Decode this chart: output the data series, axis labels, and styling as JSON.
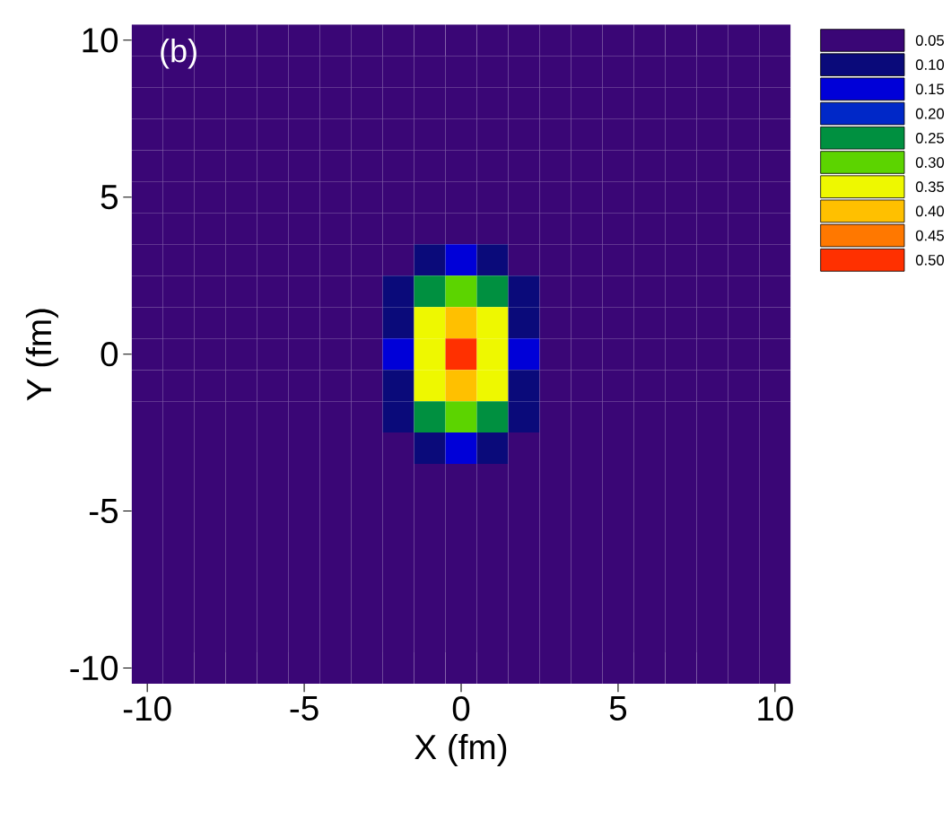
{
  "chart_data": {
    "type": "heatmap",
    "xlabel": "X (fm)",
    "ylabel": "Y (fm)",
    "annotations": [
      "(b)"
    ],
    "categories": [
      "-10",
      null,
      null,
      null,
      null,
      "-5",
      null,
      null,
      null,
      null,
      "0",
      null,
      null,
      null,
      null,
      "5",
      null,
      null,
      null,
      null,
      "10"
    ],
    "y_categories": [
      "10",
      null,
      null,
      null,
      null,
      "5",
      null,
      null,
      null,
      null,
      "0",
      null,
      null,
      null,
      null,
      "-5",
      null,
      null,
      null,
      null,
      "-10"
    ],
    "cells": [
      [
        0.05,
        0.05,
        0.05,
        0.05,
        0.05,
        0.05,
        0.05,
        0.05,
        0.05,
        0.05,
        0.05,
        0.05,
        0.05,
        0.05,
        0.05,
        0.05,
        0.05,
        0.05,
        0.05,
        0.05,
        0.05
      ],
      [
        0.05,
        0.05,
        0.05,
        0.05,
        0.05,
        0.05,
        0.05,
        0.05,
        0.05,
        0.05,
        0.05,
        0.05,
        0.05,
        0.05,
        0.05,
        0.05,
        0.05,
        0.05,
        0.05,
        0.05,
        0.05
      ],
      [
        0.05,
        0.05,
        0.05,
        0.05,
        0.05,
        0.05,
        0.05,
        0.05,
        0.05,
        0.05,
        0.05,
        0.05,
        0.05,
        0.05,
        0.05,
        0.05,
        0.05,
        0.05,
        0.05,
        0.05,
        0.05
      ],
      [
        0.05,
        0.05,
        0.05,
        0.05,
        0.05,
        0.05,
        0.05,
        0.05,
        0.05,
        0.05,
        0.05,
        0.05,
        0.05,
        0.05,
        0.05,
        0.05,
        0.05,
        0.05,
        0.05,
        0.05,
        0.05
      ],
      [
        0.05,
        0.05,
        0.05,
        0.05,
        0.05,
        0.05,
        0.05,
        0.05,
        0.05,
        0.05,
        0.05,
        0.05,
        0.05,
        0.05,
        0.05,
        0.05,
        0.05,
        0.05,
        0.05,
        0.05,
        0.05
      ],
      [
        0.05,
        0.05,
        0.05,
        0.05,
        0.05,
        0.05,
        0.05,
        0.05,
        0.05,
        0.05,
        0.05,
        0.05,
        0.05,
        0.05,
        0.05,
        0.05,
        0.05,
        0.05,
        0.05,
        0.05,
        0.05
      ],
      [
        0.05,
        0.05,
        0.05,
        0.05,
        0.05,
        0.05,
        0.05,
        0.05,
        0.05,
        0.05,
        0.05,
        0.05,
        0.05,
        0.05,
        0.05,
        0.05,
        0.05,
        0.05,
        0.05,
        0.05,
        0.05
      ],
      [
        0.05,
        0.05,
        0.05,
        0.05,
        0.05,
        0.05,
        0.05,
        0.05,
        0.05,
        0.1,
        0.15,
        0.1,
        0.05,
        0.05,
        0.05,
        0.05,
        0.05,
        0.05,
        0.05,
        0.05,
        0.05
      ],
      [
        0.05,
        0.05,
        0.05,
        0.05,
        0.05,
        0.05,
        0.05,
        0.05,
        0.1,
        0.25,
        0.3,
        0.25,
        0.1,
        0.05,
        0.05,
        0.05,
        0.05,
        0.05,
        0.05,
        0.05,
        0.05
      ],
      [
        0.05,
        0.05,
        0.05,
        0.05,
        0.05,
        0.05,
        0.05,
        0.05,
        0.1,
        0.35,
        0.4,
        0.35,
        0.1,
        0.05,
        0.05,
        0.05,
        0.05,
        0.05,
        0.05,
        0.05,
        0.05
      ],
      [
        0.05,
        0.05,
        0.05,
        0.05,
        0.05,
        0.05,
        0.05,
        0.05,
        0.15,
        0.35,
        0.5,
        0.35,
        0.15,
        0.05,
        0.05,
        0.05,
        0.05,
        0.05,
        0.05,
        0.05,
        0.05
      ],
      [
        0.05,
        0.05,
        0.05,
        0.05,
        0.05,
        0.05,
        0.05,
        0.05,
        0.1,
        0.35,
        0.4,
        0.35,
        0.1,
        0.05,
        0.05,
        0.05,
        0.05,
        0.05,
        0.05,
        0.05,
        0.05
      ],
      [
        0.05,
        0.05,
        0.05,
        0.05,
        0.05,
        0.05,
        0.05,
        0.05,
        0.1,
        0.25,
        0.3,
        0.25,
        0.1,
        0.05,
        0.05,
        0.05,
        0.05,
        0.05,
        0.05,
        0.05,
        0.05
      ],
      [
        0.05,
        0.05,
        0.05,
        0.05,
        0.05,
        0.05,
        0.05,
        0.05,
        0.05,
        0.1,
        0.15,
        0.1,
        0.05,
        0.05,
        0.05,
        0.05,
        0.05,
        0.05,
        0.05,
        0.05,
        0.05
      ],
      [
        0.05,
        0.05,
        0.05,
        0.05,
        0.05,
        0.05,
        0.05,
        0.05,
        0.05,
        0.05,
        0.05,
        0.05,
        0.05,
        0.05,
        0.05,
        0.05,
        0.05,
        0.05,
        0.05,
        0.05,
        0.05
      ],
      [
        0.05,
        0.05,
        0.05,
        0.05,
        0.05,
        0.05,
        0.05,
        0.05,
        0.05,
        0.05,
        0.05,
        0.05,
        0.05,
        0.05,
        0.05,
        0.05,
        0.05,
        0.05,
        0.05,
        0.05,
        0.05
      ],
      [
        0.05,
        0.05,
        0.05,
        0.05,
        0.05,
        0.05,
        0.05,
        0.05,
        0.05,
        0.05,
        0.05,
        0.05,
        0.05,
        0.05,
        0.05,
        0.05,
        0.05,
        0.05,
        0.05,
        0.05,
        0.05
      ],
      [
        0.05,
        0.05,
        0.05,
        0.05,
        0.05,
        0.05,
        0.05,
        0.05,
        0.05,
        0.05,
        0.05,
        0.05,
        0.05,
        0.05,
        0.05,
        0.05,
        0.05,
        0.05,
        0.05,
        0.05,
        0.05
      ],
      [
        0.05,
        0.05,
        0.05,
        0.05,
        0.05,
        0.05,
        0.05,
        0.05,
        0.05,
        0.05,
        0.05,
        0.05,
        0.05,
        0.05,
        0.05,
        0.05,
        0.05,
        0.05,
        0.05,
        0.05,
        0.05
      ],
      [
        0.05,
        0.05,
        0.05,
        0.05,
        0.05,
        0.05,
        0.05,
        0.05,
        0.05,
        0.05,
        0.05,
        0.05,
        0.05,
        0.05,
        0.05,
        0.05,
        0.05,
        0.05,
        0.05,
        0.05,
        0.05
      ],
      [
        0.05,
        0.05,
        0.05,
        0.05,
        0.05,
        0.05,
        0.05,
        0.05,
        0.05,
        0.05,
        0.05,
        0.05,
        0.05,
        0.05,
        0.05,
        0.05,
        0.05,
        0.05,
        0.05,
        0.05,
        0.05
      ]
    ],
    "cticks": [
      {
        "value": 0.05,
        "label": "0.05"
      },
      {
        "value": 0.1,
        "label": "0.10"
      },
      {
        "value": 0.15,
        "label": "0.15"
      },
      {
        "value": 0.2,
        "label": "0.20"
      },
      {
        "value": 0.25,
        "label": "0.25"
      },
      {
        "value": 0.3,
        "label": "0.30"
      },
      {
        "value": 0.35,
        "label": "0.35"
      },
      {
        "value": 0.4,
        "label": "0.40"
      },
      {
        "value": 0.45,
        "label": "0.45"
      },
      {
        "value": 0.5,
        "label": "0.50"
      }
    ],
    "colors": [
      "#3a0676",
      "#0a0a7a",
      "#0000d8",
      "#0028c8",
      "#009040",
      "#5cd400",
      "#eef800",
      "#ffc000",
      "#ff7800",
      "#ff3000"
    ]
  }
}
